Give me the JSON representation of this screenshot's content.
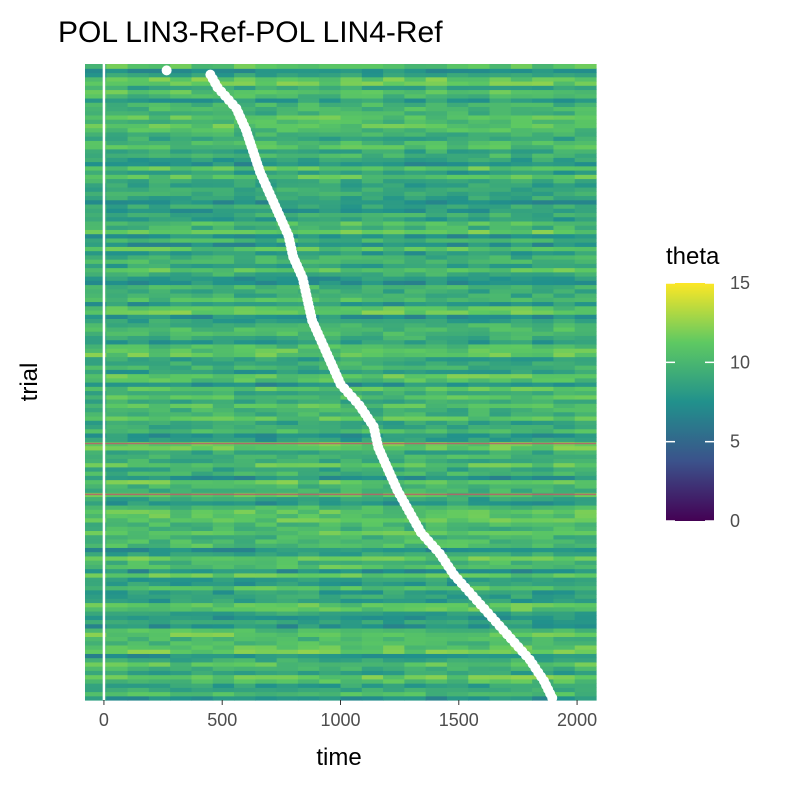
{
  "chart_data": {
    "type": "heatmap",
    "title": "POL LIN3-Ref-POL LIN4-Ref",
    "xlabel": "time",
    "ylabel": "trial",
    "xlim": [
      -80,
      2080
    ],
    "x_ticks": [
      0,
      500,
      1000,
      1500,
      2000
    ],
    "trials": 150,
    "color_scale": {
      "name": "theta",
      "palette": "viridis",
      "limits": [
        0,
        15
      ],
      "ticks": [
        0,
        5,
        10,
        15
      ],
      "colors": [
        "#440154",
        "#3b528b",
        "#21918c",
        "#5ec962",
        "#fde725"
      ]
    },
    "vline_x": 0,
    "highlighted_trials": [
      49,
      61
    ],
    "response_times": [
      {
        "trial": 1,
        "time": 1895
      },
      {
        "trial": 5,
        "time": 1860
      },
      {
        "trial": 10,
        "time": 1800
      },
      {
        "trial": 15,
        "time": 1720
      },
      {
        "trial": 20,
        "time": 1640
      },
      {
        "trial": 25,
        "time": 1560
      },
      {
        "trial": 30,
        "time": 1480
      },
      {
        "trial": 35,
        "time": 1420
      },
      {
        "trial": 40,
        "time": 1340
      },
      {
        "trial": 45,
        "time": 1290
      },
      {
        "trial": 50,
        "time": 1240
      },
      {
        "trial": 55,
        "time": 1200
      },
      {
        "trial": 60,
        "time": 1160
      },
      {
        "trial": 65,
        "time": 1140
      },
      {
        "trial": 70,
        "time": 1080
      },
      {
        "trial": 75,
        "time": 1000
      },
      {
        "trial": 80,
        "time": 960
      },
      {
        "trial": 85,
        "time": 920
      },
      {
        "trial": 90,
        "time": 880
      },
      {
        "trial": 95,
        "time": 860
      },
      {
        "trial": 100,
        "time": 840
      },
      {
        "trial": 105,
        "time": 800
      },
      {
        "trial": 110,
        "time": 780
      },
      {
        "trial": 115,
        "time": 740
      },
      {
        "trial": 120,
        "time": 700
      },
      {
        "trial": 125,
        "time": 660
      },
      {
        "trial": 130,
        "time": 630
      },
      {
        "trial": 135,
        "time": 600
      },
      {
        "trial": 140,
        "time": 560
      },
      {
        "trial": 145,
        "time": 480
      },
      {
        "trial": 148,
        "time": 450
      },
      {
        "trial": 149,
        "time": 265
      }
    ],
    "grid": false
  }
}
